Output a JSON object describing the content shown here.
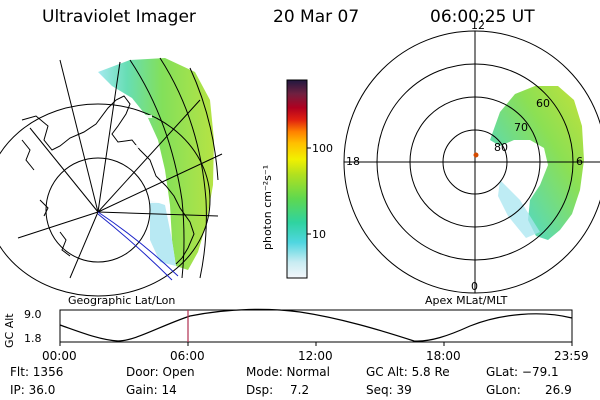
{
  "header": {
    "instrument": "Ultraviolet Imager",
    "date": "20 Mar 07",
    "time": "06:00:25 UT"
  },
  "colors": {
    "map_line": "#000000",
    "track_line": "#1a22c8",
    "cursor_line": "#b03050",
    "spot": "#d44a00"
  },
  "colorbar": {
    "unit_label": "photon cm⁻²s⁻¹",
    "ticks": [
      "100",
      "10"
    ]
  },
  "geo_panel": {
    "label": "Geographic Lat/Lon"
  },
  "polar_panel": {
    "label": "Apex MLat/MLT",
    "mlt_labels": [
      "12",
      "18",
      "6",
      "0"
    ],
    "lat_labels": [
      "60",
      "70",
      "80"
    ]
  },
  "altitude_plot": {
    "ylabel": "GC Alt",
    "ymax": "9.0",
    "ymin": "1.8",
    "x_ticks": [
      "00:00",
      "06:00",
      "12:00",
      "18:00",
      "23:59"
    ],
    "cursor_time": "06:00"
  },
  "info": {
    "flt": "Flt: 1356",
    "ip": "IP: 36.0",
    "door": "Door: Open",
    "gain": "Gain: 14",
    "mode": "Mode: Normal",
    "dsp_label": "Dsp:",
    "dsp_value": "7.2",
    "gc_alt": "GC Alt: 5.8 Re",
    "seq": "Seq: 39",
    "glat": "GLat: −79.1",
    "glon_label": "GLon:",
    "glon_value": "26.9"
  }
}
